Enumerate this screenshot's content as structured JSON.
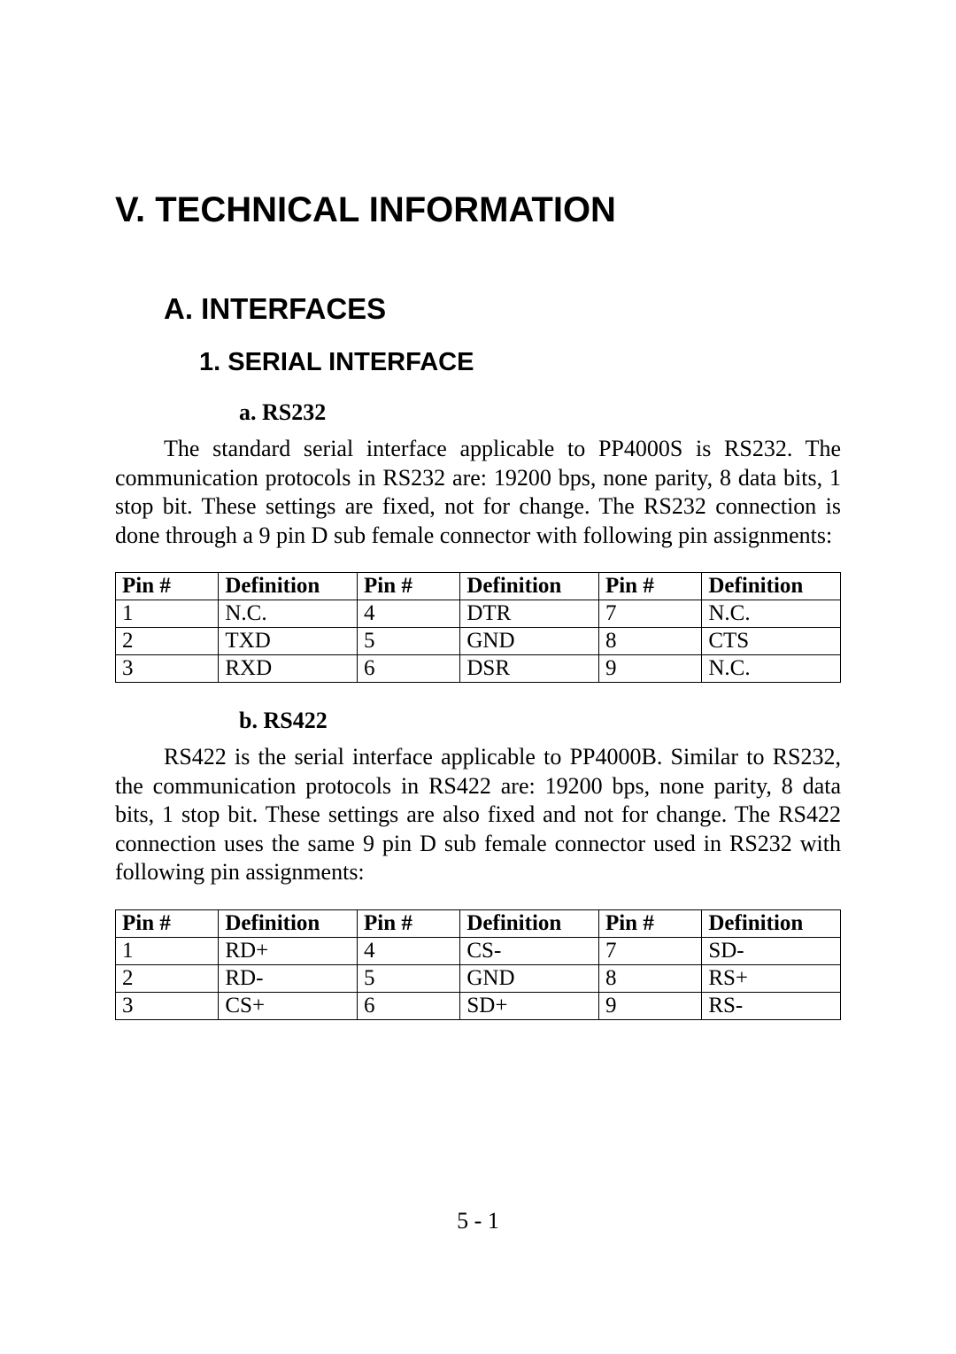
{
  "heading1": "V.   TECHNICAL INFORMATION",
  "heading2": "A. INTERFACES",
  "heading3": "1.  SERIAL INTERFACE",
  "section_a": {
    "title": "a. RS232",
    "paragraph": "The standard serial interface applicable to PP4000S is RS232. The communication protocols in RS232 are: 19200 bps, none parity, 8 data bits, 1 stop bit. These settings are fixed, not for change. The RS232 connection is done through a 9 pin D sub female connector with following pin assignments:",
    "table": {
      "headers": [
        "Pin #",
        "Definition",
        "Pin #",
        "Definition",
        "Pin #",
        "Definition"
      ],
      "rows": [
        [
          "1",
          "N.C.",
          "4",
          "DTR",
          "7",
          "N.C."
        ],
        [
          "2",
          "TXD",
          "5",
          "GND",
          "8",
          "CTS"
        ],
        [
          "3",
          "RXD",
          "6",
          "DSR",
          "9",
          "N.C."
        ]
      ]
    }
  },
  "section_b": {
    "title": "b. RS422",
    "paragraph": "RS422 is the serial interface applicable to PP4000B. Similar to RS232, the communication protocols in RS422 are: 19200 bps, none parity, 8 data bits, 1 stop bit. These settings are also fixed and not for change. The RS422 connection uses the same 9 pin D sub female connector used in RS232 with following pin assignments:",
    "table": {
      "headers": [
        "Pin #",
        "Definition",
        "Pin #",
        "Definition",
        "Pin #",
        "Definition"
      ],
      "rows": [
        [
          "1",
          "RD+",
          "4",
          "CS-",
          "7",
          "SD-"
        ],
        [
          "2",
          "RD-",
          "5",
          "GND",
          "8",
          "RS+"
        ],
        [
          "3",
          "CS+",
          "6",
          "SD+",
          "9",
          "RS-"
        ]
      ]
    }
  },
  "page_footer": "5 - 1"
}
